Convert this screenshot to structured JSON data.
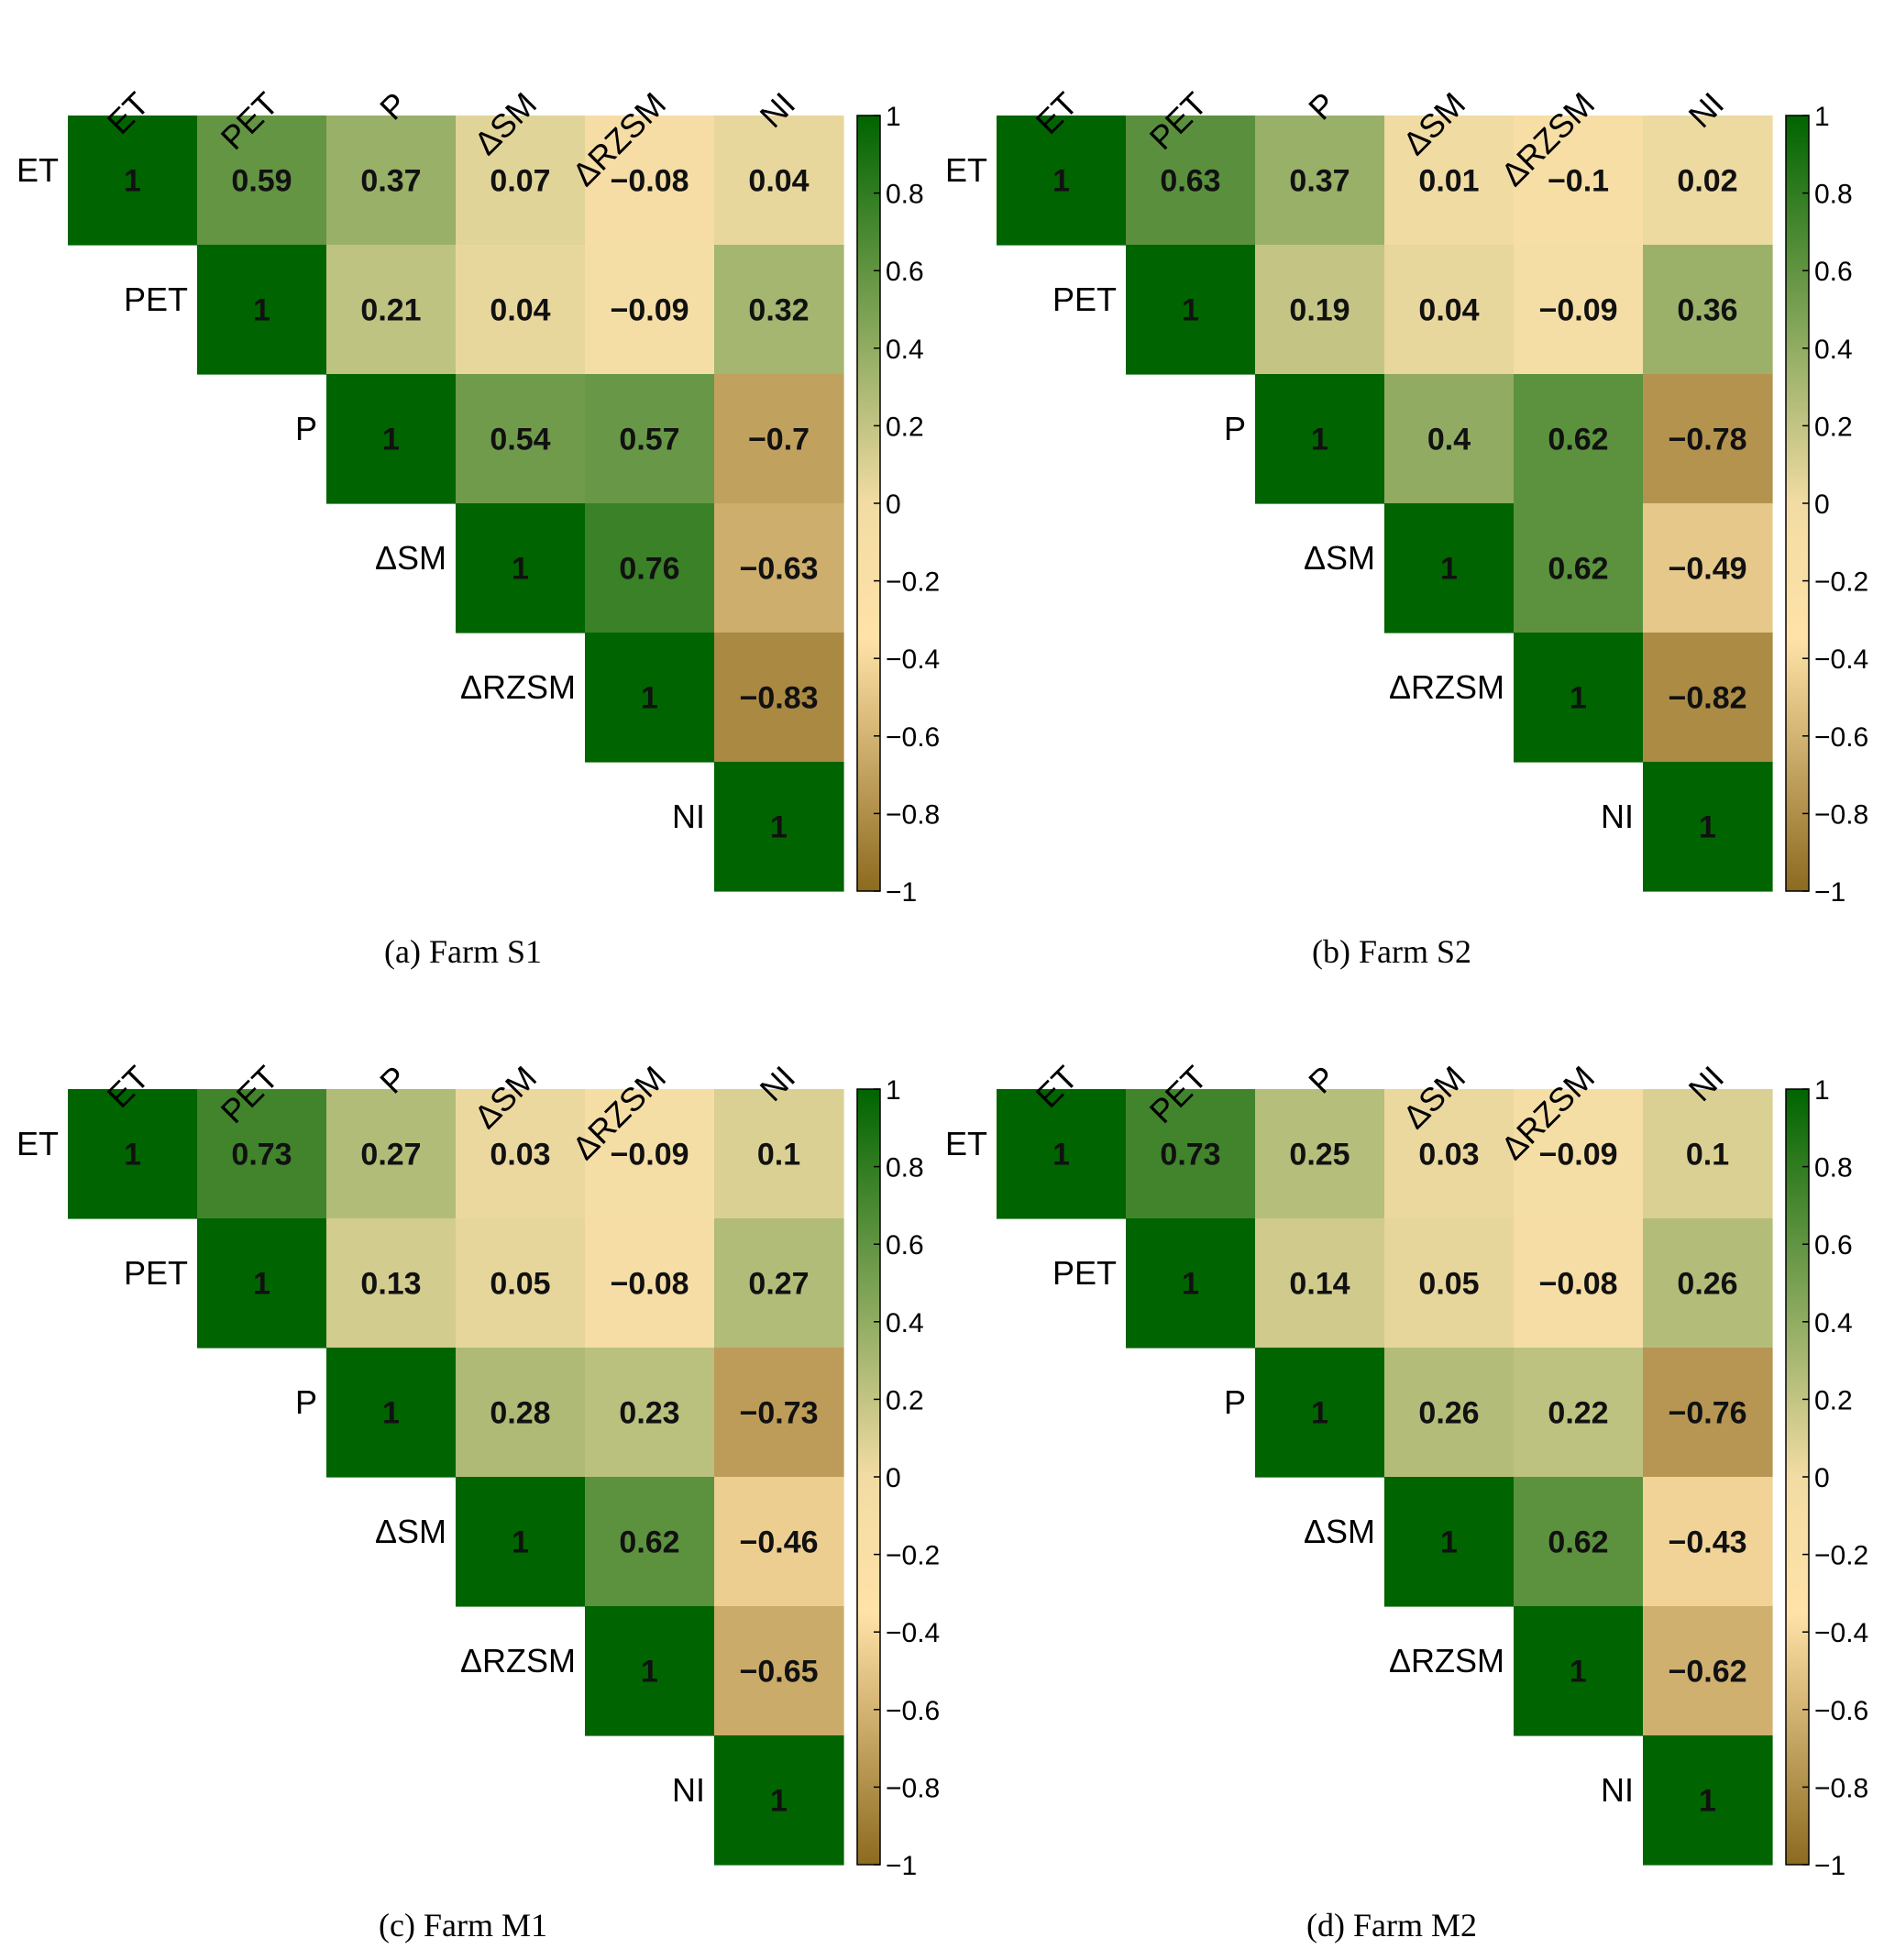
{
  "figure": {
    "variables": [
      "ET",
      "PET",
      "P",
      "ΔSM",
      "ΔRZSM",
      "NI"
    ],
    "colorbar": {
      "ticks": [
        "1",
        "0.8",
        "0.6",
        "0.4",
        "0.2",
        "0",
        "−0.2",
        "−0.4",
        "−0.6",
        "−0.8",
        "−1"
      ],
      "range": [
        -1,
        1
      ],
      "colors": {
        "positive": "#006400",
        "zero": "#f2dca4",
        "neutral_high": "#ffe2a8",
        "negative": "#8c6a1f"
      }
    }
  },
  "chart_data": [
    {
      "type": "heatmap",
      "caption": "(a) Farm S1",
      "labels": [
        "ET",
        "PET",
        "P",
        "ΔSM",
        "ΔRZSM",
        "NI"
      ],
      "matrix": [
        [
          1,
          0.59,
          0.37,
          0.07,
          -0.08,
          0.04
        ],
        [
          null,
          1,
          0.21,
          0.04,
          -0.09,
          0.32
        ],
        [
          null,
          null,
          1,
          0.54,
          0.57,
          -0.7
        ],
        [
          null,
          null,
          null,
          1,
          0.76,
          -0.63
        ],
        [
          null,
          null,
          null,
          null,
          1,
          -0.83
        ],
        [
          null,
          null,
          null,
          null,
          null,
          1
        ]
      ],
      "display": [
        [
          "1",
          "0.59",
          "0.37",
          "0.07",
          "−0.08",
          "0.04"
        ],
        [
          null,
          "1",
          "0.21",
          "0.04",
          "−0.09",
          "0.32"
        ],
        [
          null,
          null,
          "1",
          "0.54",
          "0.57",
          "−0.7"
        ],
        [
          null,
          null,
          null,
          "1",
          "0.76",
          "−0.63"
        ],
        [
          null,
          null,
          null,
          null,
          "1",
          "−0.83"
        ],
        [
          null,
          null,
          null,
          null,
          null,
          "1"
        ]
      ],
      "zlim": [
        -1,
        1
      ]
    },
    {
      "type": "heatmap",
      "caption": "(b) Farm S2",
      "labels": [
        "ET",
        "PET",
        "P",
        "ΔSM",
        "ΔRZSM",
        "NI"
      ],
      "matrix": [
        [
          1,
          0.63,
          0.37,
          0.01,
          -0.1,
          0.02
        ],
        [
          null,
          1,
          0.19,
          0.04,
          -0.09,
          0.36
        ],
        [
          null,
          null,
          1,
          0.4,
          0.62,
          -0.78
        ],
        [
          null,
          null,
          null,
          1,
          0.62,
          -0.49
        ],
        [
          null,
          null,
          null,
          null,
          1,
          -0.82
        ],
        [
          null,
          null,
          null,
          null,
          null,
          1
        ]
      ],
      "display": [
        [
          "1",
          "0.63",
          "0.37",
          "0.01",
          "−0.1",
          "0.02"
        ],
        [
          null,
          "1",
          "0.19",
          "0.04",
          "−0.09",
          "0.36"
        ],
        [
          null,
          null,
          "1",
          "0.4",
          "0.62",
          "−0.78"
        ],
        [
          null,
          null,
          null,
          "1",
          "0.62",
          "−0.49"
        ],
        [
          null,
          null,
          null,
          null,
          "1",
          "−0.82"
        ],
        [
          null,
          null,
          null,
          null,
          null,
          "1"
        ]
      ],
      "zlim": [
        -1,
        1
      ]
    },
    {
      "type": "heatmap",
      "caption": "(c) Farm M1",
      "labels": [
        "ET",
        "PET",
        "P",
        "ΔSM",
        "ΔRZSM",
        "NI"
      ],
      "matrix": [
        [
          1,
          0.73,
          0.27,
          0.03,
          -0.09,
          0.1
        ],
        [
          null,
          1,
          0.13,
          0.05,
          -0.08,
          0.27
        ],
        [
          null,
          null,
          1,
          0.28,
          0.23,
          -0.73
        ],
        [
          null,
          null,
          null,
          1,
          0.62,
          -0.46
        ],
        [
          null,
          null,
          null,
          null,
          1,
          -0.65
        ],
        [
          null,
          null,
          null,
          null,
          null,
          1
        ]
      ],
      "display": [
        [
          "1",
          "0.73",
          "0.27",
          "0.03",
          "−0.09",
          "0.1"
        ],
        [
          null,
          "1",
          "0.13",
          "0.05",
          "−0.08",
          "0.27"
        ],
        [
          null,
          null,
          "1",
          "0.28",
          "0.23",
          "−0.73"
        ],
        [
          null,
          null,
          null,
          "1",
          "0.62",
          "−0.46"
        ],
        [
          null,
          null,
          null,
          null,
          "1",
          "−0.65"
        ],
        [
          null,
          null,
          null,
          null,
          null,
          "1"
        ]
      ],
      "zlim": [
        -1,
        1
      ]
    },
    {
      "type": "heatmap",
      "caption": "(d) Farm M2",
      "labels": [
        "ET",
        "PET",
        "P",
        "ΔSM",
        "ΔRZSM",
        "NI"
      ],
      "matrix": [
        [
          1,
          0.73,
          0.25,
          0.03,
          -0.09,
          0.1
        ],
        [
          null,
          1,
          0.14,
          0.05,
          -0.08,
          0.26
        ],
        [
          null,
          null,
          1,
          0.26,
          0.22,
          -0.76
        ],
        [
          null,
          null,
          null,
          1,
          0.62,
          -0.43
        ],
        [
          null,
          null,
          null,
          null,
          1,
          -0.62
        ],
        [
          null,
          null,
          null,
          null,
          null,
          1
        ]
      ],
      "display": [
        [
          "1",
          "0.73",
          "0.25",
          "0.03",
          "−0.09",
          "0.1"
        ],
        [
          null,
          "1",
          "0.14",
          "0.05",
          "−0.08",
          "0.26"
        ],
        [
          null,
          null,
          "1",
          "0.26",
          "0.22",
          "−0.76"
        ],
        [
          null,
          null,
          null,
          "1",
          "0.62",
          "−0.43"
        ],
        [
          null,
          null,
          null,
          null,
          "1",
          "−0.62"
        ],
        [
          null,
          null,
          null,
          null,
          null,
          "1"
        ]
      ],
      "zlim": [
        -1,
        1
      ]
    }
  ]
}
